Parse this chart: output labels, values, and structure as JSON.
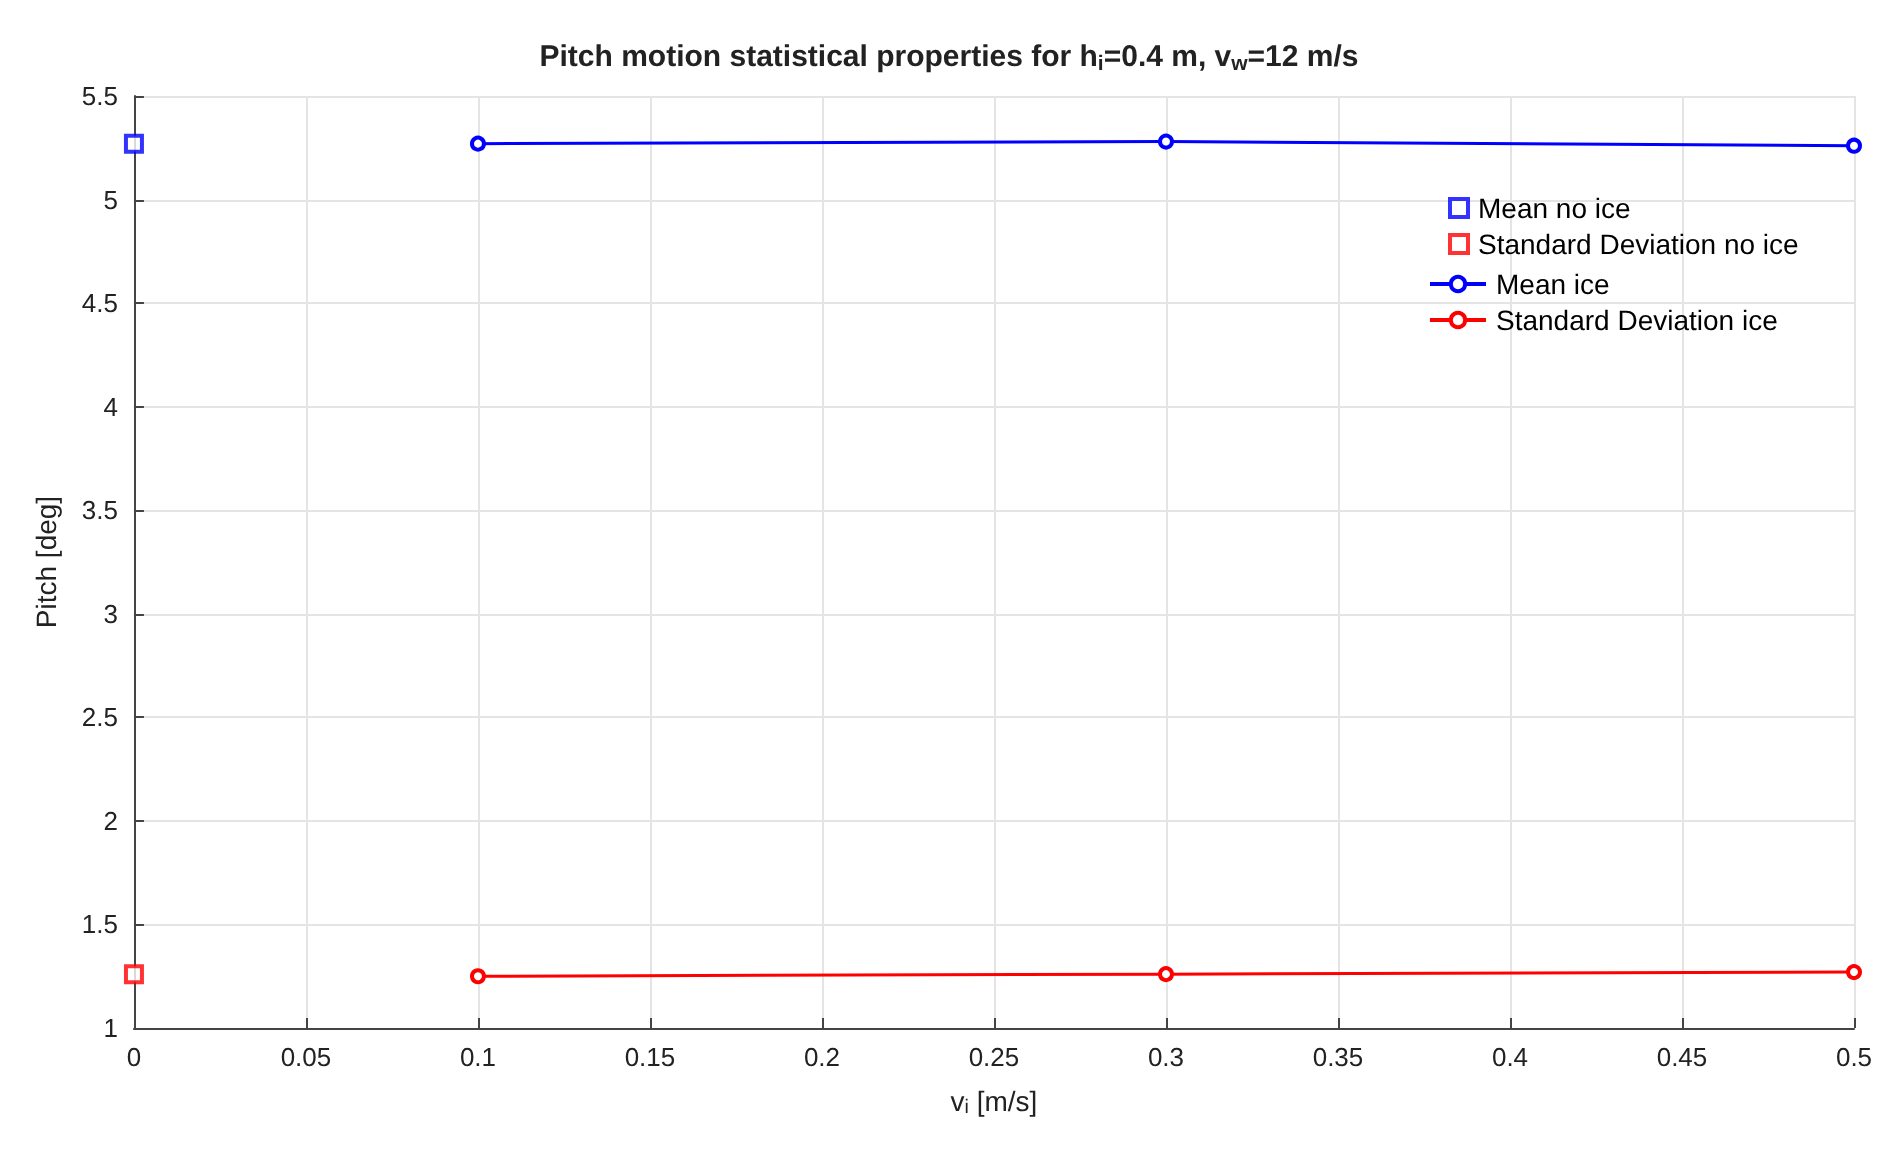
{
  "chart_data": {
    "type": "line",
    "title": "Pitch motion statistical properties for h$_{i}$=0.4 m, v$_{w}$=12 m/s",
    "xlabel": "v$_{i}$ [m/s]",
    "ylabel": "Pitch [deg]",
    "series": [
      {
        "name": "Mean no ice",
        "type": "scatter",
        "marker": "square",
        "color": "#0000ff",
        "x": [
          0
        ],
        "values": [
          5.27
        ]
      },
      {
        "name": "Standard Deviation no ice",
        "type": "scatter",
        "marker": "square",
        "color": "#ff0000",
        "x": [
          0
        ],
        "values": [
          1.26
        ]
      },
      {
        "name": "Mean ice",
        "marker": "circle",
        "color": "#0000ff",
        "x": [
          0.1,
          0.3,
          0.5
        ],
        "values": [
          5.27,
          5.28,
          5.26
        ]
      },
      {
        "name": "Standard Deviation ice",
        "marker": "circle",
        "color": "#ff0000",
        "x": [
          0.1,
          0.3,
          0.5
        ],
        "values": [
          1.25,
          1.26,
          1.27
        ]
      }
    ],
    "xlim": [
      0,
      0.5
    ],
    "xticks": [
      0,
      0.05,
      0.1,
      0.15,
      0.2,
      0.25,
      0.3,
      0.35,
      0.4,
      0.45,
      0.5
    ],
    "ylim": [
      1,
      5.5
    ],
    "yticks": [
      1,
      1.5,
      2,
      2.5,
      3,
      3.5,
      4,
      4.5,
      5,
      5.5
    ],
    "grid": true,
    "legend": "top right"
  }
}
